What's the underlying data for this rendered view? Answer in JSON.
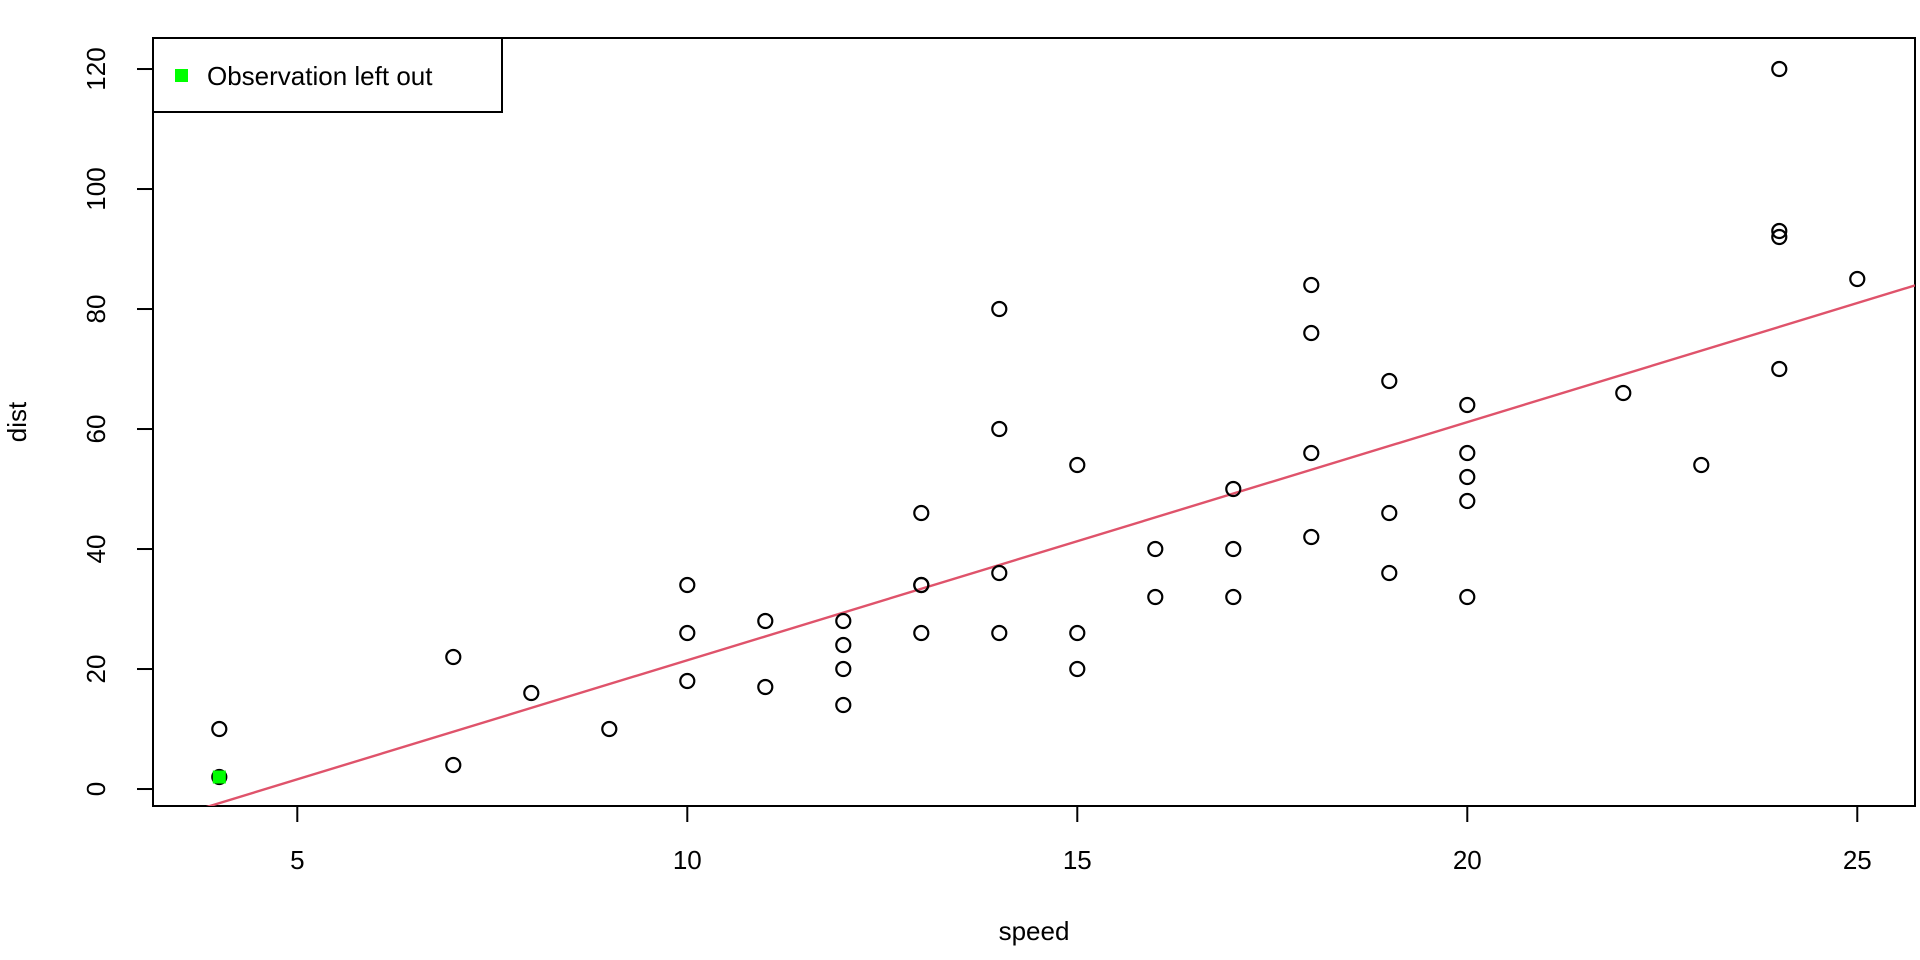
{
  "figure": {
    "background": "#ffffff",
    "foreground": "#000000"
  },
  "chart_data": {
    "type": "scatter",
    "title": "",
    "xlabel": "speed",
    "ylabel": "dist",
    "x_ticks": [
      5,
      10,
      15,
      20,
      25
    ],
    "y_ticks": [
      0,
      20,
      40,
      60,
      80,
      100,
      120
    ],
    "xlim": [
      3.15,
      25.74
    ],
    "ylim": [
      -2.83,
      125.17
    ],
    "grid": false,
    "points": [
      [
        4,
        2
      ],
      [
        4,
        10
      ],
      [
        7,
        4
      ],
      [
        7,
        22
      ],
      [
        8,
        16
      ],
      [
        9,
        10
      ],
      [
        10,
        18
      ],
      [
        10,
        26
      ],
      [
        10,
        34
      ],
      [
        11,
        17
      ],
      [
        11,
        28
      ],
      [
        12,
        14
      ],
      [
        12,
        20
      ],
      [
        12,
        24
      ],
      [
        12,
        28
      ],
      [
        13,
        26
      ],
      [
        13,
        34
      ],
      [
        13,
        34
      ],
      [
        13,
        46
      ],
      [
        14,
        26
      ],
      [
        14,
        36
      ],
      [
        14,
        60
      ],
      [
        14,
        80
      ],
      [
        15,
        20
      ],
      [
        15,
        26
      ],
      [
        15,
        54
      ],
      [
        16,
        32
      ],
      [
        16,
        40
      ],
      [
        17,
        32
      ],
      [
        17,
        40
      ],
      [
        17,
        50
      ],
      [
        18,
        42
      ],
      [
        18,
        56
      ],
      [
        18,
        76
      ],
      [
        18,
        84
      ],
      [
        19,
        36
      ],
      [
        19,
        46
      ],
      [
        19,
        68
      ],
      [
        20,
        32
      ],
      [
        20,
        48
      ],
      [
        20,
        52
      ],
      [
        20,
        56
      ],
      [
        20,
        64
      ],
      [
        22,
        66
      ],
      [
        23,
        54
      ],
      [
        24,
        70
      ],
      [
        24,
        92
      ],
      [
        24,
        93
      ],
      [
        24,
        120
      ],
      [
        25,
        85
      ]
    ],
    "point_style": {
      "shape": "open-circle",
      "stroke_color": "#000000"
    },
    "left_out_point": {
      "x": 4,
      "y": 2,
      "marker": "filled-square",
      "color": "#00FF00"
    },
    "regression_line": {
      "slope": 3.969,
      "intercept": -18.23,
      "color": "#DF536B"
    },
    "legend": {
      "position": "topleft",
      "entries": [
        {
          "label": "Observation left out",
          "marker": "filled-square",
          "color": "#00FF00"
        }
      ]
    }
  }
}
